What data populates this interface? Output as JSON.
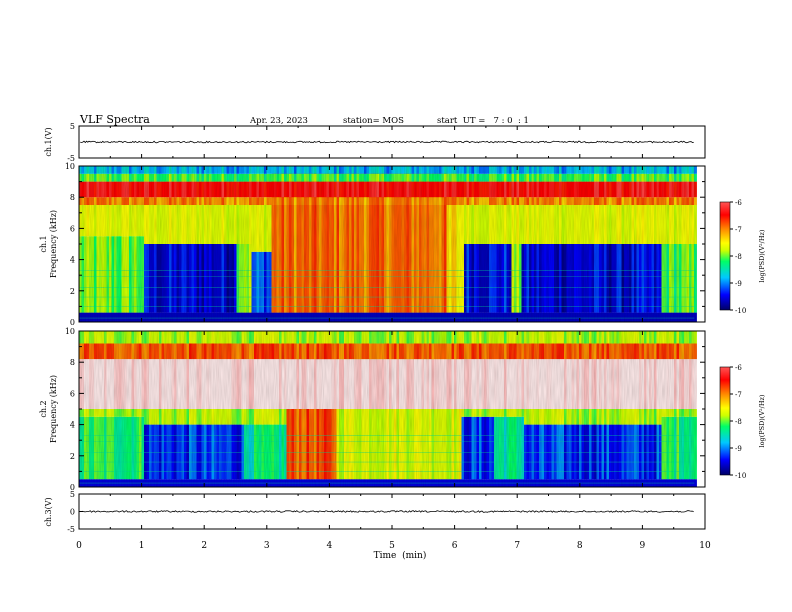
{
  "header": {
    "title": "VLF Spectra",
    "date": "Apr. 23, 2023",
    "station": "station= MOS",
    "start": "start  UT =   7 : 0  : 1"
  },
  "chart_data": [
    {
      "type": "line",
      "name": "ch.1 waveform",
      "ylabel": "ch.1(V)",
      "xlim": [
        0,
        10
      ],
      "ylim": [
        -5,
        5
      ],
      "yticks": [
        "5",
        "-5"
      ],
      "trace_level": 0
    },
    {
      "type": "heatmap",
      "name": "ch.1 spectrogram",
      "ylabel": "ch.1\nFrequency (kHz)",
      "xlim": [
        0,
        9.83
      ],
      "ylim": [
        0,
        10
      ],
      "yticks": [
        "0",
        "2",
        "4",
        "6",
        "8",
        "10"
      ],
      "colorbar": {
        "label": "log(PSD)(V²/Hz)",
        "range": [
          -10,
          -6
        ],
        "ticks": [
          "-6",
          "-7",
          "-8",
          "-9",
          "-10"
        ]
      },
      "regions": [
        {
          "t0": 0.0,
          "t1": 1.0,
          "top_khz": 5.5,
          "level": -8.2
        },
        {
          "t0": 1.0,
          "t1": 2.5,
          "top_khz": 5.0,
          "level": -9.6
        },
        {
          "t0": 2.5,
          "t1": 2.75,
          "top_khz": 5.0,
          "level": -8.0
        },
        {
          "t0": 2.75,
          "t1": 3.05,
          "top_khz": 4.5,
          "level": -9.3
        },
        {
          "t0": 3.05,
          "t1": 5.85,
          "top_khz": 10,
          "level": -7.1
        },
        {
          "t0": 5.85,
          "t1": 6.15,
          "top_khz": 10,
          "level": -7.6
        },
        {
          "t0": 6.15,
          "t1": 6.9,
          "top_khz": 5.0,
          "level": -9.5
        },
        {
          "t0": 6.9,
          "t1": 7.05,
          "top_khz": 5.0,
          "level": -8.1
        },
        {
          "t0": 7.05,
          "t1": 9.3,
          "top_khz": 5.0,
          "level": -9.6
        },
        {
          "t0": 9.3,
          "t1": 9.83,
          "top_khz": 5.0,
          "level": -8.3
        }
      ],
      "band_8_9khz_level": -6.6,
      "top_band_level": -9.0
    },
    {
      "type": "heatmap",
      "name": "ch.2 spectrogram",
      "ylabel": "ch.2\nFrequency (kHz)",
      "xlim": [
        0,
        9.83
      ],
      "ylim": [
        0,
        10
      ],
      "yticks": [
        "0",
        "2",
        "4",
        "6",
        "8",
        "10"
      ],
      "colorbar": {
        "label": "log(PSD)(V²/Hz)",
        "range": [
          -10,
          -6
        ],
        "ticks": [
          "-6",
          "-7",
          "-8",
          "-9",
          "-10"
        ]
      },
      "regions": [
        {
          "t0": 0.0,
          "t1": 1.0,
          "top_khz": 4.5,
          "level": -8.4
        },
        {
          "t0": 1.0,
          "t1": 2.6,
          "top_khz": 4.0,
          "level": -9.4
        },
        {
          "t0": 2.6,
          "t1": 3.3,
          "top_khz": 4.0,
          "level": -8.6
        },
        {
          "t0": 3.3,
          "t1": 4.1,
          "top_khz": 10,
          "level": -7.0
        },
        {
          "t0": 4.1,
          "t1": 6.1,
          "top_khz": 10,
          "level": -7.8
        },
        {
          "t0": 6.1,
          "t1": 6.6,
          "top_khz": 4.5,
          "level": -9.4
        },
        {
          "t0": 6.6,
          "t1": 7.1,
          "top_khz": 4.5,
          "level": -8.6
        },
        {
          "t0": 7.1,
          "t1": 9.3,
          "top_khz": 4.0,
          "level": -9.4
        },
        {
          "t0": 9.3,
          "t1": 9.83,
          "top_khz": 4.5,
          "level": -8.4
        }
      ],
      "band_5_8khz_level": -6.0,
      "top_band_level": -8.0
    },
    {
      "type": "line",
      "name": "ch.3 waveform",
      "ylabel": "ch.3(V)",
      "xlabel": "Time  (min)",
      "xlim": [
        0,
        10
      ],
      "ylim": [
        -5,
        5
      ],
      "yticks": [
        "5",
        "0",
        "-5"
      ],
      "xticks": [
        "0",
        "1",
        "2",
        "3",
        "4",
        "5",
        "6",
        "7",
        "8",
        "9",
        "10"
      ],
      "trace_level": 0
    }
  ],
  "colors": {
    "scale": [
      "#000066",
      "#0000ff",
      "#00c8ff",
      "#00ff66",
      "#ccff00",
      "#ffff00",
      "#ff8800",
      "#ff0000",
      "#ffffff"
    ],
    "axis": "#000000"
  }
}
